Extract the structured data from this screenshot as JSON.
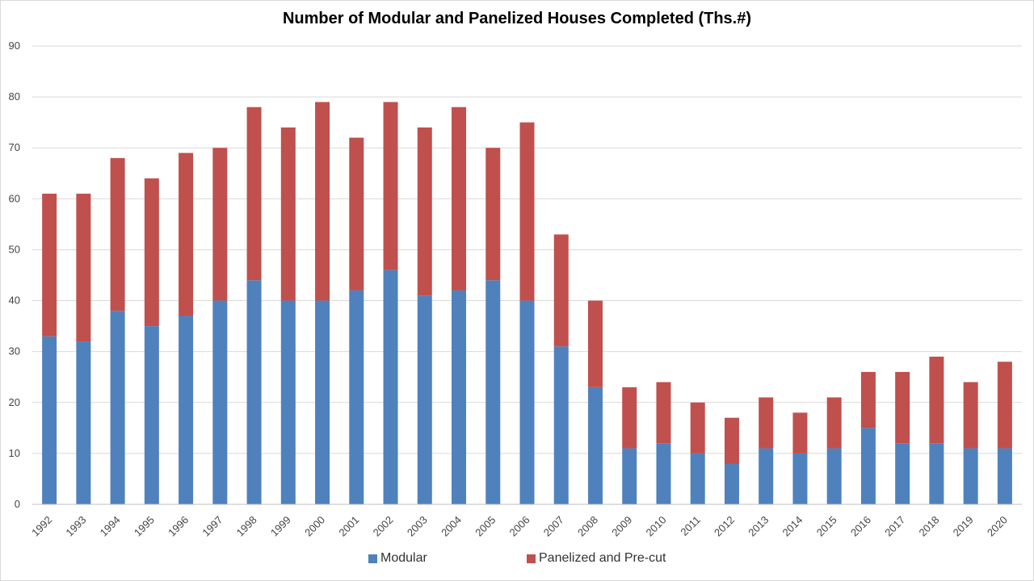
{
  "chart_data": {
    "type": "bar",
    "stacked": true,
    "title": "Number of Modular and Panelized Houses Completed (Ths.#)",
    "xlabel": "",
    "ylabel": "",
    "ylim": [
      0,
      90
    ],
    "yticks": [
      0,
      10,
      20,
      30,
      40,
      50,
      60,
      70,
      80,
      90
    ],
    "grid": true,
    "legend_position": "bottom",
    "categories": [
      "1992",
      "1993",
      "1994",
      "1995",
      "1996",
      "1997",
      "1998",
      "1999",
      "2000",
      "2001",
      "2002",
      "2003",
      "2004",
      "2005",
      "2006",
      "2007",
      "2008",
      "2009",
      "2010",
      "2011",
      "2012",
      "2013",
      "2014",
      "2015",
      "2016",
      "2017",
      "2018",
      "2019",
      "2020"
    ],
    "series": [
      {
        "name": "Modular",
        "color": "#4f81bd",
        "values": [
          33,
          32,
          38,
          35,
          37,
          40,
          44,
          40,
          40,
          42,
          46,
          41,
          42,
          44,
          40,
          31,
          23,
          11,
          12,
          10,
          8,
          11,
          10,
          11,
          15,
          12,
          12,
          11,
          11
        ]
      },
      {
        "name": "Panelized and Pre-cut",
        "color": "#c0504d",
        "values": [
          28,
          29,
          30,
          29,
          32,
          30,
          34,
          34,
          39,
          30,
          33,
          33,
          36,
          26,
          35,
          22,
          17,
          12,
          12,
          10,
          9,
          10,
          8,
          10,
          11,
          14,
          17,
          13,
          17
        ]
      }
    ]
  }
}
